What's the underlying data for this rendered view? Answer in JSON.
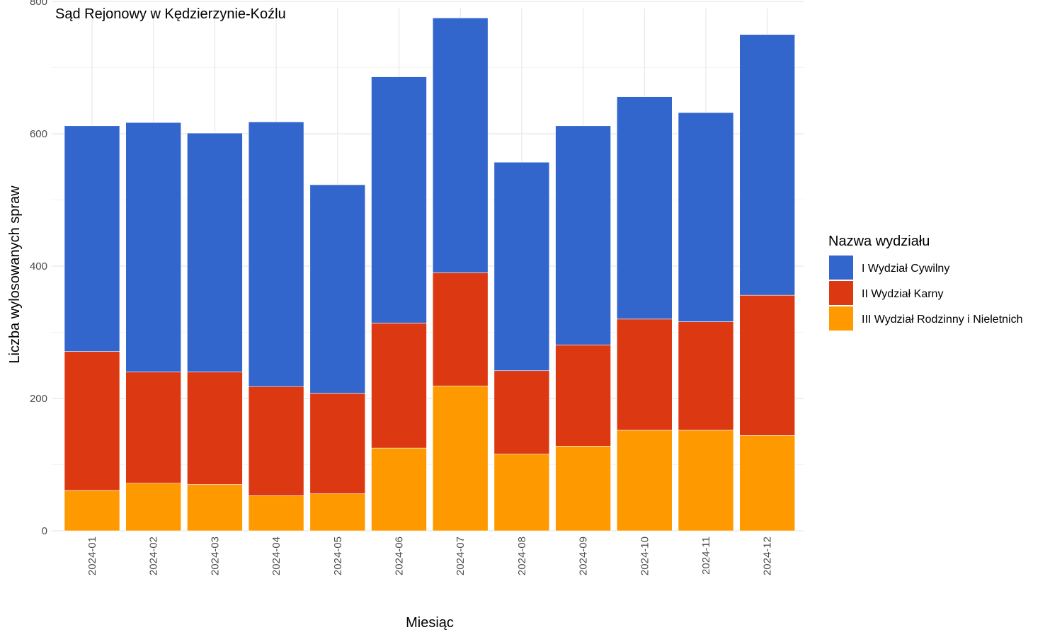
{
  "chart_data": {
    "type": "bar",
    "stacked": true,
    "title": "Sąd Rejonowy w Kędzierzynie-Koźlu",
    "xlabel": "Miesiąc",
    "ylabel": "Liczba wylosowanych spraw",
    "ylim": [
      0,
      800
    ],
    "yticks": [
      0,
      200,
      400,
      600,
      800
    ],
    "grid": true,
    "legend_title": "Nazwa wydziału",
    "legend_position": "right",
    "categories": [
      "2024-01",
      "2024-02",
      "2024-03",
      "2024-04",
      "2024-05",
      "2024-06",
      "2024-07",
      "2024-08",
      "2024-09",
      "2024-10",
      "2024-11",
      "2024-12"
    ],
    "series": [
      {
        "name": "III Wydział Rodzinny i Nieletnich",
        "color": "#FF9900",
        "values": [
          61,
          72,
          70,
          53,
          56,
          125,
          219,
          116,
          128,
          152,
          152,
          144
        ]
      },
      {
        "name": "II Wydział Karny",
        "color": "#DC3912",
        "values": [
          210,
          168,
          170,
          165,
          152,
          189,
          171,
          126,
          153,
          168,
          164,
          212
        ]
      },
      {
        "name": "I Wydział Cywilny",
        "color": "#3366CC",
        "values": [
          341,
          377,
          361,
          400,
          315,
          372,
          385,
          315,
          331,
          336,
          316,
          394
        ]
      }
    ],
    "legend_order": [
      "I Wydział Cywilny",
      "II Wydział Karny",
      "III Wydział Rodzinny i Nieletnich"
    ]
  }
}
